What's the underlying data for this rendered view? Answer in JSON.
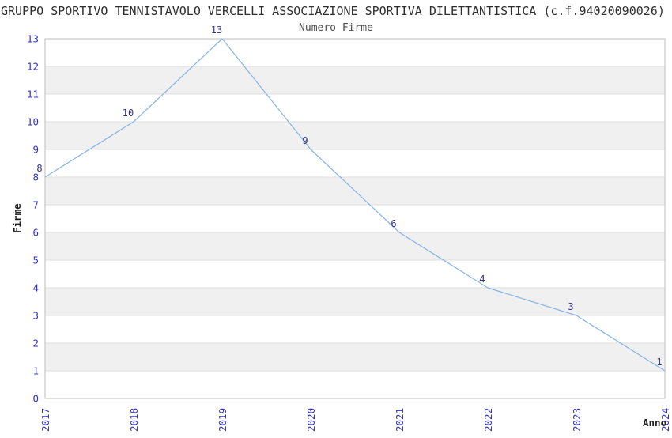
{
  "header": {
    "title": "GRUPPO SPORTIVO TENNISTAVOLO VERCELLI ASSOCIAZIONE SPORTIVA DILETTANTISTICA (c.f.94020090026)"
  },
  "chart_data": {
    "type": "line",
    "title": "Numero Firme",
    "xlabel": "Anno",
    "ylabel": "Firme",
    "categories": [
      "2017",
      "2018",
      "2019",
      "2020",
      "2021",
      "2022",
      "2023",
      "2024"
    ],
    "values": [
      8,
      10,
      13,
      9,
      6,
      4,
      3,
      1
    ],
    "ylim": [
      0,
      13
    ],
    "ytick_step": 1,
    "yticks": [
      0,
      1,
      2,
      3,
      4,
      5,
      6,
      7,
      8,
      9,
      10,
      11,
      12,
      13
    ],
    "grid": "horizontal",
    "band_shading": "alternating odd bands shaded",
    "legend": "none",
    "data_labels": true
  },
  "style": {
    "line_color": "#86b5e8",
    "tick_label_color": "#3333cc",
    "data_label_color": "#333388",
    "band_color": "#f0f0f0",
    "grid_color": "#dedede",
    "border_color": "#c8c8c8",
    "title_color": "#2e2e2e",
    "subtitle_color": "#4d4d4d",
    "axis_title_color": "#1f1f1f",
    "background_color": "#ffffff"
  }
}
